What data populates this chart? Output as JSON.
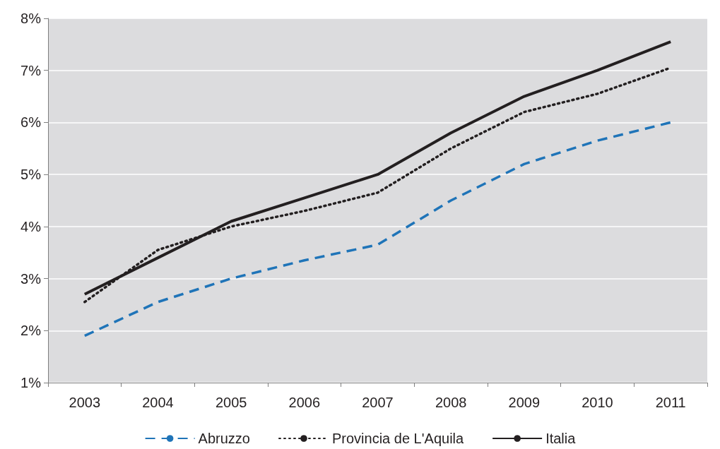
{
  "chart_data": {
    "type": "line",
    "categories": [
      "2003",
      "2004",
      "2005",
      "2006",
      "2007",
      "2008",
      "2009",
      "2010",
      "2011"
    ],
    "series": [
      {
        "name": "Abruzzo",
        "color": "#1f74b8",
        "line_style": "dashed",
        "values": [
          1.9,
          2.55,
          3.0,
          3.35,
          3.65,
          4.5,
          5.2,
          5.65,
          6.0
        ]
      },
      {
        "name": "Provincia de L'Aquila",
        "color": "#231f20",
        "line_style": "dotted",
        "values": [
          2.55,
          3.55,
          4.0,
          4.3,
          4.65,
          5.5,
          6.2,
          6.55,
          7.05
        ]
      },
      {
        "name": "Italia",
        "color": "#231f20",
        "line_style": "solid",
        "values": [
          2.7,
          3.4,
          4.1,
          4.55,
          5.0,
          5.8,
          6.5,
          7.0,
          7.55
        ]
      }
    ],
    "ylim": [
      1,
      8
    ],
    "yticks": [
      {
        "value": 1,
        "label": "1%"
      },
      {
        "value": 2,
        "label": "2%"
      },
      {
        "value": 3,
        "label": "3%"
      },
      {
        "value": 4,
        "label": "4%"
      },
      {
        "value": 5,
        "label": "5%"
      },
      {
        "value": 6,
        "label": "6%"
      },
      {
        "value": 7,
        "label": "7%"
      },
      {
        "value": 8,
        "label": "8%"
      }
    ],
    "grid": "y",
    "legend": "bottom",
    "marker": "none"
  }
}
